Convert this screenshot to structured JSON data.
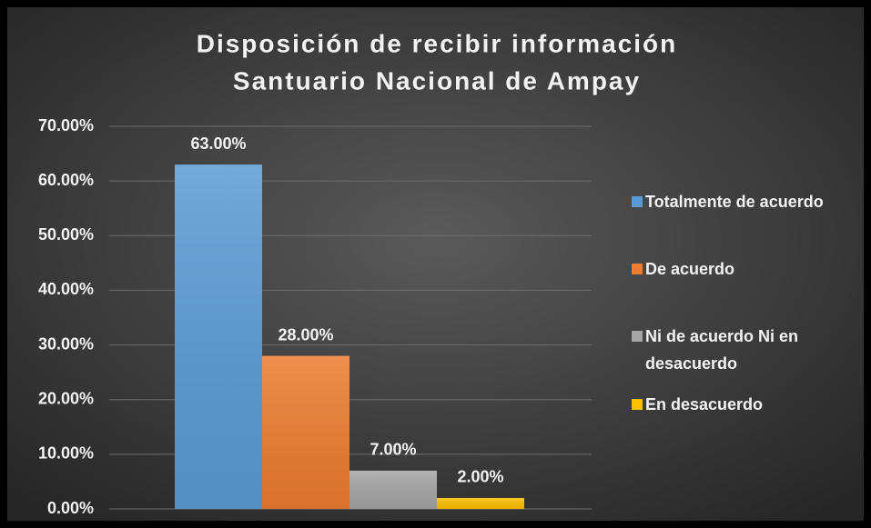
{
  "chart_data": {
    "type": "bar",
    "title": [
      "Disposición de recibir información",
      "Santuario Nacional de Ampay"
    ],
    "categories": [
      null
    ],
    "series": [
      {
        "name": "Totalmente de acuerdo",
        "color": "#5b9bd5",
        "values": [
          63
        ],
        "value_labels": [
          "63.00%"
        ]
      },
      {
        "name": "De acuerdo",
        "color": "#ed7d31",
        "values": [
          28
        ],
        "value_labels": [
          "28.00%"
        ]
      },
      {
        "name": "Ni de acuerdo Ni en desacuerdo",
        "color": "#a5a5a5",
        "values": [
          7
        ],
        "value_labels": [
          "7.00%"
        ]
      },
      {
        "name": "En desacuerdo",
        "color": "#ffc000",
        "values": [
          2
        ],
        "value_labels": [
          "2.00%"
        ]
      }
    ],
    "ylim": [
      0,
      70
    ],
    "yticks": [
      {
        "value": 0,
        "label": "0.00%"
      },
      {
        "value": 10,
        "label": "10.00%"
      },
      {
        "value": 20,
        "label": "20.00%"
      },
      {
        "value": 30,
        "label": "30.00%"
      },
      {
        "value": 40,
        "label": "40.00%"
      },
      {
        "value": 50,
        "label": "50.00%"
      },
      {
        "value": 60,
        "label": "60.00%"
      },
      {
        "value": 70,
        "label": "70.00%"
      }
    ],
    "grid": true,
    "legend": "right"
  }
}
